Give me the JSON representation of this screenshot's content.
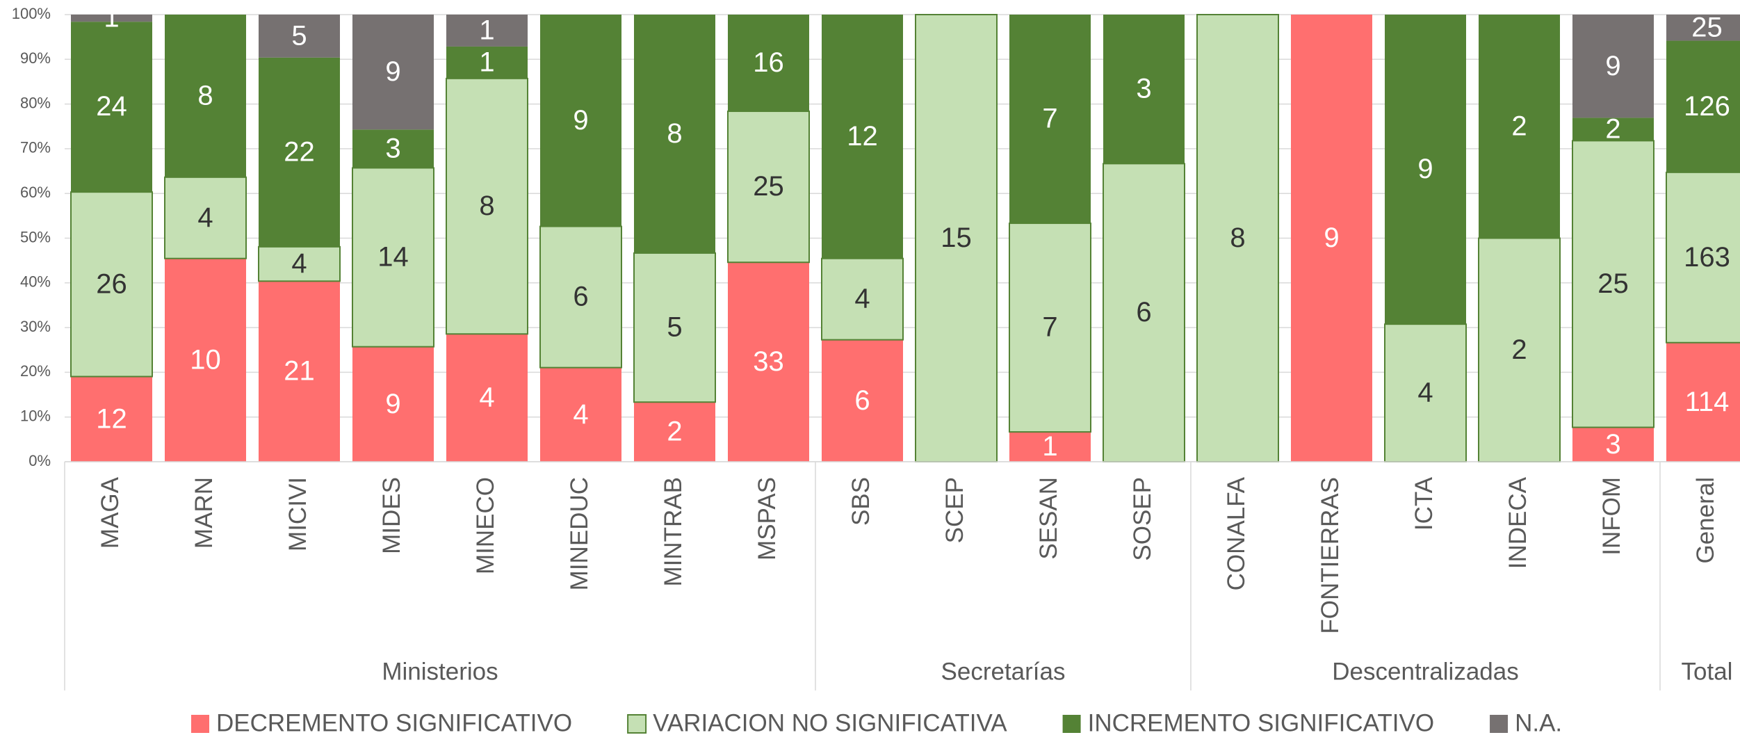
{
  "chart_data": {
    "type": "stacked_percent_bar",
    "categories": [
      "MAGA",
      "MARN",
      "MICIVI",
      "MIDES",
      "MINECO",
      "MINEDUC",
      "MINTRAB",
      "MSPAS",
      "SBS",
      "SCEP",
      "SESAN",
      "SOSEP",
      "CONALFA",
      "FONTIERRAS",
      "ICTA",
      "INDECA",
      "INFOM",
      "General"
    ],
    "groups": [
      {
        "label": "Ministerios",
        "size": 8
      },
      {
        "label": "Secretarías",
        "size": 4
      },
      {
        "label": "Descentralizadas",
        "size": 5
      },
      {
        "label": "Total",
        "size": 1
      }
    ],
    "series": [
      {
        "name": "DECREMENTO SIGNIFICATIVO",
        "color": "#ff6f6f",
        "label_color": "#ffffff",
        "values": [
          12,
          10,
          21,
          9,
          4,
          4,
          2,
          33,
          6,
          0,
          1,
          0,
          0,
          9,
          0,
          0,
          3,
          114
        ]
      },
      {
        "name": "VARIACION NO SIGNIFICATIVA",
        "color": "#c5e0b4",
        "stroke": "#548235",
        "label_color": "#333333",
        "values": [
          26,
          4,
          4,
          14,
          8,
          6,
          5,
          25,
          4,
          15,
          7,
          6,
          8,
          0,
          4,
          2,
          25,
          163
        ]
      },
      {
        "name": "INCREMENTO SIGNIFICATIVO",
        "color": "#548235",
        "label_color": "#ffffff",
        "values": [
          24,
          8,
          22,
          3,
          1,
          9,
          8,
          16,
          12,
          0,
          7,
          3,
          0,
          0,
          9,
          2,
          2,
          126
        ]
      },
      {
        "name": "N.A.",
        "color": "#767171",
        "label_color": "#ffffff",
        "values": [
          1,
          0,
          5,
          9,
          1,
          0,
          0,
          0,
          0,
          0,
          0,
          0,
          0,
          0,
          0,
          0,
          9,
          25
        ]
      }
    ],
    "ylim": [
      0,
      100
    ],
    "yticks": [
      {
        "value": 0,
        "label": "0%"
      },
      {
        "value": 10,
        "label": "10%"
      },
      {
        "value": 20,
        "label": "20%"
      },
      {
        "value": 30,
        "label": "30%"
      },
      {
        "value": 40,
        "label": "40%"
      },
      {
        "value": 50,
        "label": "50%"
      },
      {
        "value": 60,
        "label": "60%"
      },
      {
        "value": 70,
        "label": "70%"
      },
      {
        "value": 80,
        "label": "80%"
      },
      {
        "value": 90,
        "label": "90%"
      },
      {
        "value": 100,
        "label": "100%"
      }
    ],
    "grid": true,
    "legend": "bottom"
  }
}
